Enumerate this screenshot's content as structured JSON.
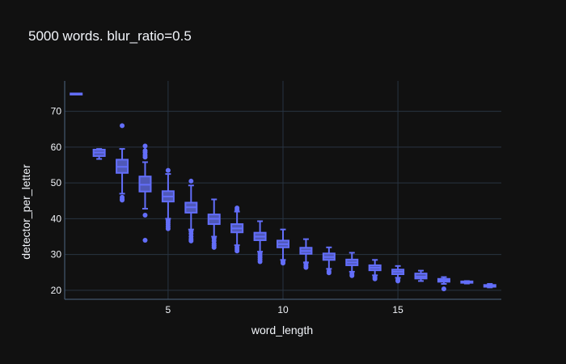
{
  "chart_data": {
    "type": "box",
    "title": "5000 words. blur_ratio=0.5",
    "xlabel": "word_length",
    "ylabel": "detector_per_letter",
    "xlim": [
      0.5,
      19.5
    ],
    "ylim": [
      17.5,
      78.5
    ],
    "xticks": [
      5,
      10,
      15
    ],
    "yticks": [
      20,
      30,
      40,
      50,
      60,
      70
    ],
    "grid": true,
    "legend": "none",
    "colors": {
      "background": "#111111",
      "grid": "#283442",
      "box_fill": "#4f58b8",
      "box_line": "#636efa"
    },
    "boxes": [
      {
        "x": 1,
        "min": 75.0,
        "q1": 75.0,
        "median": 75.0,
        "q3": 75.0,
        "max": 75.0,
        "outliers": []
      },
      {
        "x": 2,
        "min": 56.7,
        "q1": 57.5,
        "median": 58.5,
        "q3": 59.3,
        "max": 59.5,
        "outliers": []
      },
      {
        "x": 3,
        "min": 47.0,
        "q1": 52.8,
        "median": 54.5,
        "q3": 56.5,
        "max": 59.5,
        "outliers": [
          66.0,
          46.0,
          45.5,
          45.2
        ]
      },
      {
        "x": 4,
        "min": 42.8,
        "q1": 47.6,
        "median": 49.5,
        "q3": 51.8,
        "max": 55.8,
        "outliers": [
          60.3,
          59.0,
          58.5,
          57.8,
          57.2,
          41.0,
          34.0
        ]
      },
      {
        "x": 5,
        "min": 40.0,
        "q1": 44.8,
        "median": 46.2,
        "q3": 47.7,
        "max": 52.5,
        "outliers": [
          53.5,
          39.5,
          39.0,
          38.4,
          37.8,
          37.2
        ]
      },
      {
        "x": 6,
        "min": 37.0,
        "q1": 41.7,
        "median": 43.2,
        "q3": 44.5,
        "max": 49.3,
        "outliers": [
          50.5,
          36.5,
          35.8,
          35.0,
          34.3,
          33.8
        ]
      },
      {
        "x": 7,
        "min": 35.0,
        "q1": 38.5,
        "median": 40.0,
        "q3": 41.2,
        "max": 45.4,
        "outliers": [
          34.5,
          33.8,
          33.0,
          32.5,
          32.0
        ]
      },
      {
        "x": 8,
        "min": 32.6,
        "q1": 36.2,
        "median": 37.3,
        "q3": 38.5,
        "max": 42.0,
        "outliers": [
          43.0,
          42.5,
          32.0,
          31.5,
          31.0
        ]
      },
      {
        "x": 9,
        "min": 30.8,
        "q1": 34.0,
        "median": 35.0,
        "q3": 36.1,
        "max": 39.3,
        "outliers": [
          30.3,
          29.7,
          29.2,
          28.6,
          28.0
        ]
      },
      {
        "x": 10,
        "min": 28.5,
        "q1": 32.0,
        "median": 32.9,
        "q3": 33.9,
        "max": 37.0,
        "outliers": [
          28.0,
          27.6
        ]
      },
      {
        "x": 11,
        "min": 27.8,
        "q1": 30.2,
        "median": 31.0,
        "q3": 31.9,
        "max": 34.3,
        "outliers": [
          27.5,
          26.9,
          26.4
        ]
      },
      {
        "x": 12,
        "min": 26.0,
        "q1": 28.5,
        "median": 29.3,
        "q3": 30.3,
        "max": 32.0,
        "outliers": [
          25.3,
          24.9
        ]
      },
      {
        "x": 13,
        "min": 25.2,
        "q1": 27.0,
        "median": 27.8,
        "q3": 28.6,
        "max": 30.5,
        "outliers": [
          24.6,
          24.1
        ]
      },
      {
        "x": 14,
        "min": 24.2,
        "q1": 25.6,
        "median": 26.3,
        "q3": 27.0,
        "max": 28.5,
        "outliers": [
          23.6,
          23.2
        ]
      },
      {
        "x": 15,
        "min": 23.5,
        "q1": 24.5,
        "median": 25.2,
        "q3": 25.8,
        "max": 26.8,
        "outliers": [
          22.9,
          22.6
        ]
      },
      {
        "x": 16,
        "min": 22.6,
        "q1": 23.3,
        "median": 23.8,
        "q3": 24.7,
        "max": 25.5,
        "outliers": []
      },
      {
        "x": 17,
        "min": 21.8,
        "q1": 22.4,
        "median": 22.8,
        "q3": 23.2,
        "max": 23.7,
        "outliers": [
          20.4
        ]
      },
      {
        "x": 18,
        "min": 21.9,
        "q1": 22.1,
        "median": 22.3,
        "q3": 22.5,
        "max": 22.6,
        "outliers": []
      },
      {
        "x": 19,
        "min": 20.8,
        "q1": 21.0,
        "median": 21.3,
        "q3": 21.5,
        "max": 21.8,
        "outliers": []
      }
    ]
  }
}
